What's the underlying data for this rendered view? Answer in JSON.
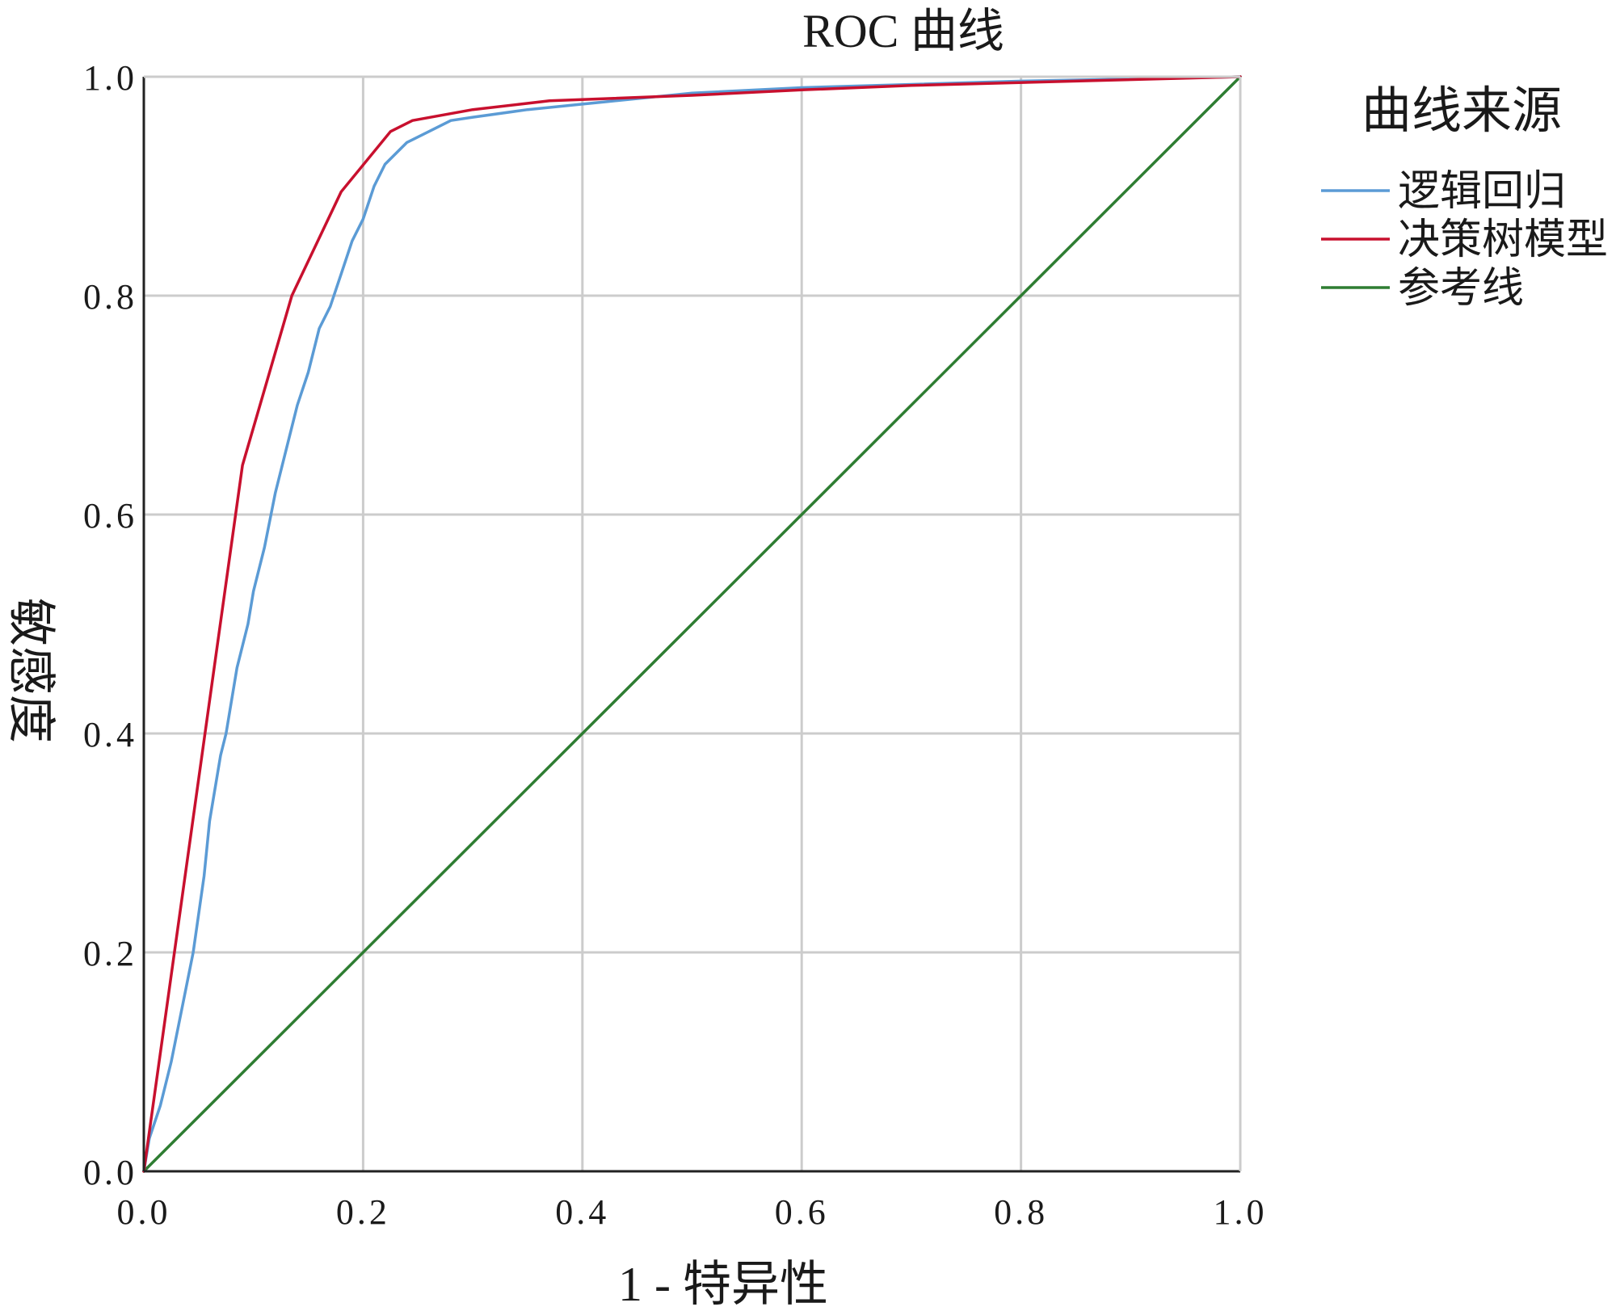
{
  "chart_data": {
    "type": "line",
    "title": "ROC 曲线",
    "xlabel": "1 - 特异性",
    "ylabel": "敏感度",
    "xlim": [
      0,
      1
    ],
    "ylim": [
      0,
      1
    ],
    "x_ticks": [
      "0.0",
      "0.2",
      "0.4",
      "0.6",
      "0.8",
      "1.0"
    ],
    "y_ticks": [
      "0.0",
      "0.2",
      "0.4",
      "0.6",
      "0.8",
      "1.0"
    ],
    "grid": true,
    "legend": {
      "title": "曲线来源",
      "position": "right"
    },
    "series": [
      {
        "name": "逻辑回归",
        "color": "#5b9bd5",
        "points": [
          [
            0,
            0
          ],
          [
            0.005,
            0.03
          ],
          [
            0.015,
            0.06
          ],
          [
            0.025,
            0.1
          ],
          [
            0.035,
            0.15
          ],
          [
            0.045,
            0.2
          ],
          [
            0.055,
            0.27
          ],
          [
            0.06,
            0.32
          ],
          [
            0.07,
            0.38
          ],
          [
            0.075,
            0.4
          ],
          [
            0.085,
            0.46
          ],
          [
            0.095,
            0.5
          ],
          [
            0.1,
            0.53
          ],
          [
            0.11,
            0.57
          ],
          [
            0.12,
            0.62
          ],
          [
            0.13,
            0.66
          ],
          [
            0.14,
            0.7
          ],
          [
            0.15,
            0.73
          ],
          [
            0.16,
            0.77
          ],
          [
            0.17,
            0.79
          ],
          [
            0.18,
            0.82
          ],
          [
            0.19,
            0.85
          ],
          [
            0.2,
            0.87
          ],
          [
            0.21,
            0.9
          ],
          [
            0.22,
            0.92
          ],
          [
            0.24,
            0.94
          ],
          [
            0.26,
            0.95
          ],
          [
            0.28,
            0.96
          ],
          [
            0.3,
            0.963
          ],
          [
            0.35,
            0.97
          ],
          [
            0.4,
            0.975
          ],
          [
            0.5,
            0.985
          ],
          [
            0.6,
            0.99
          ],
          [
            0.7,
            0.993
          ],
          [
            0.8,
            0.996
          ],
          [
            0.9,
            0.998
          ],
          [
            1,
            1
          ]
        ]
      },
      {
        "name": "决策树模型",
        "color": "#c8102e",
        "points": [
          [
            0,
            0
          ],
          [
            0.09,
            0.645
          ],
          [
            0.135,
            0.8
          ],
          [
            0.18,
            0.895
          ],
          [
            0.225,
            0.95
          ],
          [
            0.245,
            0.96
          ],
          [
            0.3,
            0.97
          ],
          [
            0.37,
            0.978
          ],
          [
            0.5,
            0.983
          ],
          [
            0.6,
            0.988
          ],
          [
            0.7,
            0.992
          ],
          [
            0.85,
            0.996
          ],
          [
            1,
            1
          ]
        ]
      },
      {
        "name": "参考线",
        "color": "#2e7d32",
        "points": [
          [
            0,
            0
          ],
          [
            1,
            1
          ]
        ]
      }
    ]
  }
}
